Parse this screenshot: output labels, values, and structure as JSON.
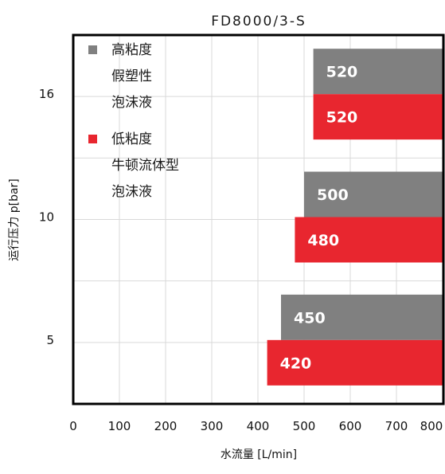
{
  "chart_data": {
    "type": "bar",
    "orientation": "horizontal",
    "title": "FD8000/3-S",
    "xlabel": "水流量 [L/min]",
    "ylabel": "运行压力 p[bar]",
    "xlim": [
      0,
      800
    ],
    "x_ticks": [
      "0",
      "100",
      "200",
      "300",
      "400",
      "500",
      "600",
      "700",
      "800"
    ],
    "categories": [
      "16",
      "10",
      "5"
    ],
    "grid": true,
    "legend_position": "top-left",
    "series": [
      {
        "name": "高粘度\n假塑性\n泡沫液",
        "legend_lines": [
          "高粘度",
          "假塑性",
          "泡沫液"
        ],
        "color": "#808080",
        "values": [
          520,
          500,
          450
        ],
        "value_labels": [
          "520",
          "500",
          "450"
        ]
      },
      {
        "name": "低粘度\n牛顿流体型\n泡沫液",
        "legend_lines": [
          "低粘度",
          "牛顿流体型",
          "泡沫液"
        ],
        "color": "#e8262f",
        "values": [
          520,
          480,
          420
        ],
        "value_labels": [
          "520",
          "480",
          "420"
        ]
      }
    ]
  }
}
